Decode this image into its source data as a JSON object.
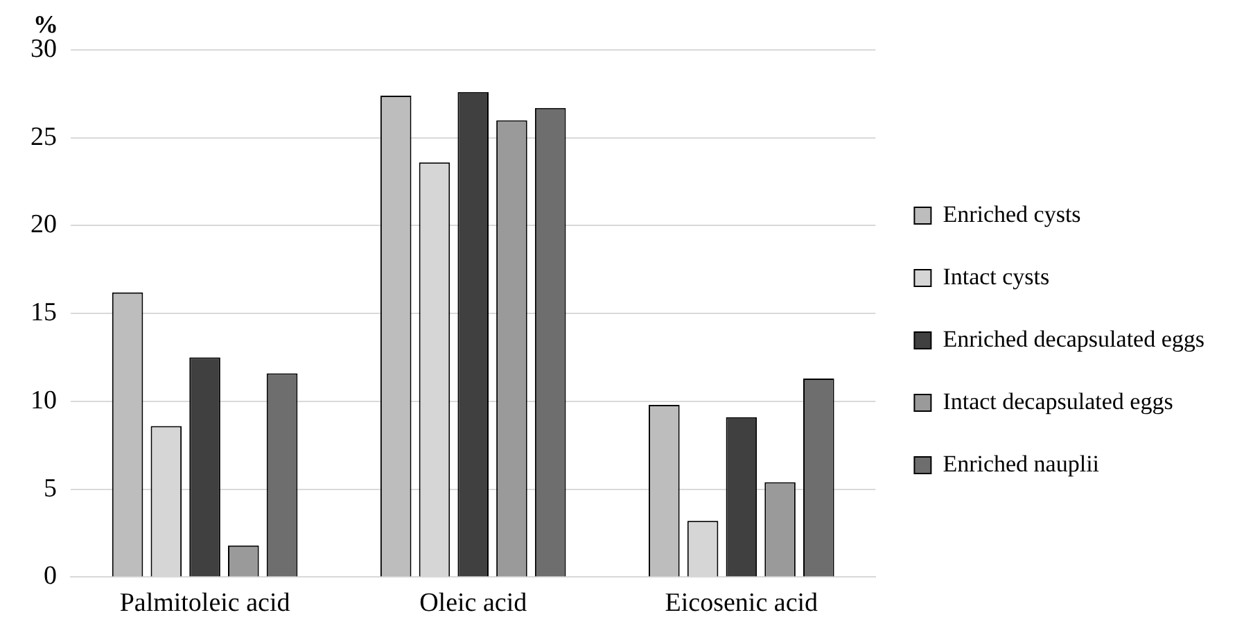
{
  "chart_data": {
    "type": "bar",
    "ylabel": "%",
    "categories": [
      "Palmitoleic acid",
      "Oleic acid",
      "Eicosenic acid"
    ],
    "series": [
      {
        "name": "Enriched cysts",
        "color": "#bdbdbd",
        "values": [
          16.2,
          27.4,
          9.8
        ]
      },
      {
        "name": "Intact cysts",
        "color": "#d6d6d6",
        "values": [
          8.6,
          23.6,
          3.2
        ]
      },
      {
        "name": "Enriched decapsulated eggs",
        "color": "#404040",
        "values": [
          12.5,
          27.6,
          9.1
        ]
      },
      {
        "name": "Intact decapsulated eggs",
        "color": "#9a9a9a",
        "values": [
          1.8,
          26.0,
          5.4
        ]
      },
      {
        "name": "Enriched nauplii",
        "color": "#6e6e6e",
        "values": [
          11.6,
          26.7,
          11.3
        ]
      }
    ],
    "ylim": [
      0,
      30
    ],
    "yticks": [
      0,
      5,
      10,
      15,
      20,
      25,
      30
    ],
    "grid": "y",
    "legend": "right"
  }
}
